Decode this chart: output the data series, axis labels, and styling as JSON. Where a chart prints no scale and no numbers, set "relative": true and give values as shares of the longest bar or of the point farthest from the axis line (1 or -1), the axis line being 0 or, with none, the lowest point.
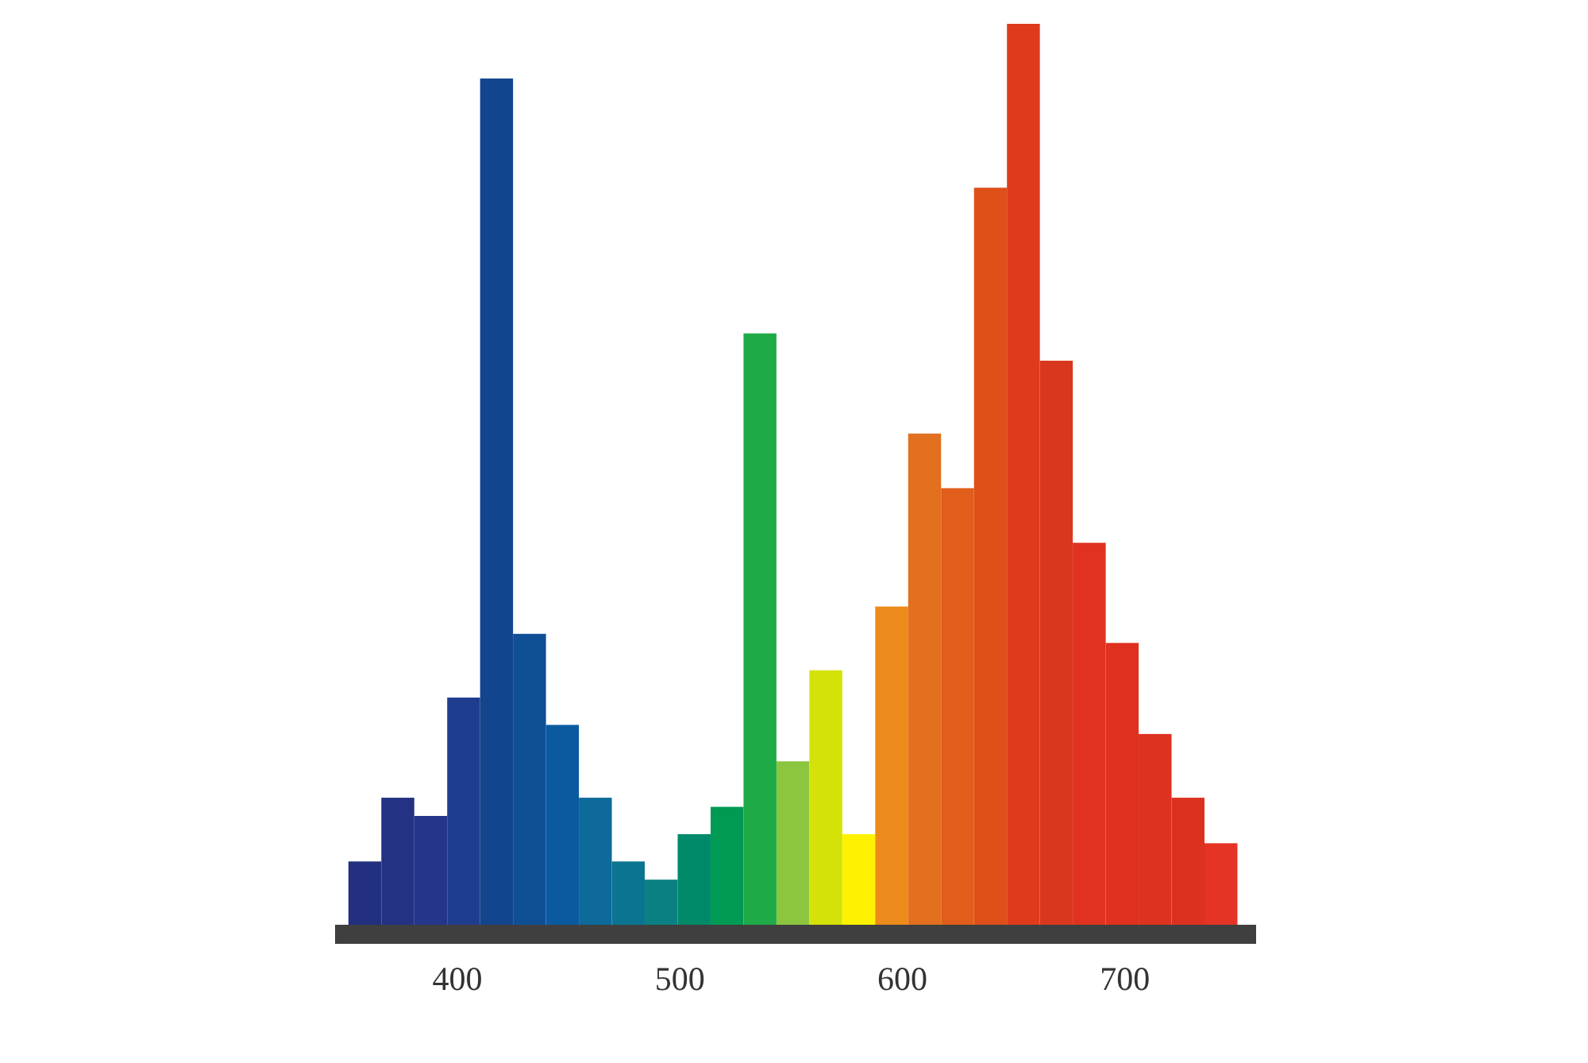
{
  "chart_data": {
    "type": "bar",
    "relative": true,
    "x": [
      358.4,
      373.2,
      388,
      402.8,
      417.6,
      432.4,
      447.2,
      462,
      476.8,
      491.6,
      506.4,
      521.2,
      536,
      550.8,
      565.6,
      580.4,
      595.2,
      610,
      624.8,
      639.6,
      654.4,
      669.2,
      684,
      698.8,
      713.6,
      728.4,
      743.2
    ],
    "values": [
      0.08,
      0.15,
      0.13,
      0.26,
      0.94,
      0.33,
      0.23,
      0.15,
      0.08,
      0.06,
      0.11,
      0.14,
      0.66,
      0.19,
      0.29,
      0.11,
      0.36,
      0.55,
      0.49,
      0.82,
      1,
      0.63,
      0.43,
      0.32,
      0.22,
      0.15,
      0.1
    ],
    "colors": [
      "#22307f",
      "#233283",
      "#24358a",
      "#1f3d8f",
      "#13448e",
      "#0f4f96",
      "#0a5aa0",
      "#0d6a9a",
      "#0b7490",
      "#0a8082",
      "#008a6a",
      "#009a55",
      "#1faa48",
      "#8cc63f",
      "#d4e20a",
      "#fff200",
      "#ec8a1c",
      "#e2701f",
      "#e05d1b",
      "#df4f18",
      "#e03a1c",
      "#d9381e",
      "#e0321f",
      "#e0301f",
      "#de3220",
      "#dd3120",
      "#e53326"
    ],
    "xlim": [
      345,
      759
    ],
    "xticks": [
      400,
      500,
      600,
      700
    ]
  }
}
